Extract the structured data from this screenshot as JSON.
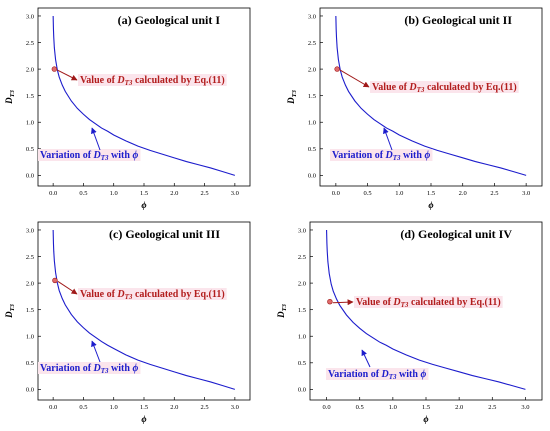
{
  "chart_data": [
    {
      "type": "line",
      "title": "(a) Geological unit I",
      "xlabel": "ϕ",
      "ylabel": "D_T3",
      "xlim": [
        -0.25,
        3.25
      ],
      "ylim": [
        -0.2,
        3.15
      ],
      "xticks": [
        "0.0",
        "0.5",
        "1.0",
        "1.5",
        "2.0",
        "2.5",
        "3.0"
      ],
      "yticks": [
        "0.0",
        "0.5",
        "1.0",
        "1.5",
        "2.0",
        "2.5",
        "3.0"
      ],
      "series": [
        {
          "x": [
            0.0,
            0.005,
            0.01,
            0.02,
            0.04,
            0.07,
            0.1,
            0.15,
            0.2,
            0.3,
            0.4,
            0.5,
            0.6,
            0.7,
            0.8,
            0.9,
            1.0,
            1.2,
            1.4,
            1.6,
            1.8,
            2.0,
            2.2,
            2.4,
            2.6,
            2.8,
            3.0
          ],
          "y": [
            3.0,
            2.75,
            2.6,
            2.4,
            2.18,
            1.98,
            1.85,
            1.7,
            1.58,
            1.4,
            1.26,
            1.15,
            1.05,
            0.97,
            0.89,
            0.83,
            0.76,
            0.65,
            0.55,
            0.47,
            0.4,
            0.33,
            0.26,
            0.2,
            0.14,
            0.07,
            0.0
          ]
        }
      ],
      "point": {
        "x": 0.02,
        "y": 2.0
      },
      "annotations": {
        "value": {
          "pre": "Value of ",
          "sym": "D",
          "sub": "T3",
          "post": " calculated by Eq.(11)"
        },
        "variation": {
          "pre": "Variation of ",
          "sym": "D",
          "sub": "T3",
          "mid": " with ",
          "phi": "ϕ"
        }
      }
    },
    {
      "type": "line",
      "title": "(b) Geological unit II",
      "xlabel": "ϕ",
      "ylabel": "D_T3",
      "xlim": [
        -0.25,
        3.25
      ],
      "ylim": [
        -0.2,
        3.15
      ],
      "xticks": [
        "0.0",
        "0.5",
        "1.0",
        "1.5",
        "2.0",
        "2.5",
        "3.0"
      ],
      "yticks": [
        "0.0",
        "0.5",
        "1.0",
        "1.5",
        "2.0",
        "2.5",
        "3.0"
      ],
      "series": [
        {
          "x": [
            0.0,
            0.005,
            0.01,
            0.02,
            0.04,
            0.07,
            0.1,
            0.15,
            0.2,
            0.3,
            0.4,
            0.5,
            0.6,
            0.7,
            0.8,
            0.9,
            1.0,
            1.2,
            1.4,
            1.6,
            1.8,
            2.0,
            2.2,
            2.4,
            2.6,
            2.8,
            3.0
          ],
          "y": [
            3.0,
            2.75,
            2.6,
            2.4,
            2.18,
            1.98,
            1.85,
            1.7,
            1.58,
            1.4,
            1.26,
            1.15,
            1.05,
            0.97,
            0.89,
            0.83,
            0.76,
            0.65,
            0.55,
            0.47,
            0.4,
            0.33,
            0.26,
            0.2,
            0.14,
            0.07,
            0.0
          ]
        }
      ],
      "point": {
        "x": 0.02,
        "y": 2.0
      },
      "annotations": {
        "value": {
          "pre": "Value of ",
          "sym": "D",
          "sub": "T3",
          "post": " calculated by Eq.(11)"
        },
        "variation": {
          "pre": "Variation of ",
          "sym": "D",
          "sub": "T3",
          "mid": " with ",
          "phi": "ϕ"
        }
      }
    },
    {
      "type": "line",
      "title": "(c) Geological unit III",
      "xlabel": "ϕ",
      "ylabel": "D_T3",
      "xlim": [
        -0.25,
        3.25
      ],
      "ylim": [
        -0.2,
        3.15
      ],
      "xticks": [
        "0.0",
        "0.5",
        "1.0",
        "1.5",
        "2.0",
        "2.5",
        "3.0"
      ],
      "yticks": [
        "0.0",
        "0.5",
        "1.0",
        "1.5",
        "2.0",
        "2.5",
        "3.0"
      ],
      "series": [
        {
          "x": [
            0.0,
            0.005,
            0.01,
            0.02,
            0.04,
            0.07,
            0.1,
            0.15,
            0.2,
            0.3,
            0.4,
            0.5,
            0.6,
            0.7,
            0.8,
            0.9,
            1.0,
            1.2,
            1.4,
            1.6,
            1.8,
            2.0,
            2.2,
            2.4,
            2.6,
            2.8,
            3.0
          ],
          "y": [
            3.0,
            2.75,
            2.6,
            2.42,
            2.2,
            2.0,
            1.86,
            1.71,
            1.59,
            1.41,
            1.27,
            1.16,
            1.06,
            0.98,
            0.9,
            0.83,
            0.77,
            0.65,
            0.55,
            0.47,
            0.4,
            0.33,
            0.26,
            0.2,
            0.14,
            0.07,
            0.0
          ]
        }
      ],
      "point": {
        "x": 0.03,
        "y": 2.05
      },
      "annotations": {
        "value": {
          "pre": "Value of ",
          "sym": "D",
          "sub": "T3",
          "post": " calculated by Eq.(11)"
        },
        "variation": {
          "pre": "Variation of ",
          "sym": "D",
          "sub": "T3",
          "mid": " with ",
          "phi": "ϕ"
        }
      }
    },
    {
      "type": "line",
      "title": "(d) Geological unit IV",
      "xlabel": "ϕ",
      "ylabel": "D_T3",
      "xlim": [
        -0.25,
        3.25
      ],
      "ylim": [
        -0.2,
        3.15
      ],
      "xticks": [
        "0.0",
        "0.5",
        "1.0",
        "1.5",
        "2.0",
        "2.5",
        "3.0"
      ],
      "yticks": [
        "0.0",
        "0.5",
        "1.0",
        "1.5",
        "2.0",
        "2.5",
        "3.0"
      ],
      "series": [
        {
          "x": [
            0.0,
            0.005,
            0.01,
            0.02,
            0.04,
            0.07,
            0.1,
            0.15,
            0.2,
            0.3,
            0.4,
            0.5,
            0.6,
            0.7,
            0.8,
            0.9,
            1.0,
            1.2,
            1.4,
            1.6,
            1.8,
            2.0,
            2.2,
            2.4,
            2.6,
            2.8,
            3.0
          ],
          "y": [
            3.0,
            2.75,
            2.6,
            2.4,
            2.18,
            1.98,
            1.85,
            1.7,
            1.58,
            1.4,
            1.26,
            1.15,
            1.05,
            0.97,
            0.89,
            0.83,
            0.76,
            0.65,
            0.55,
            0.47,
            0.4,
            0.33,
            0.26,
            0.2,
            0.14,
            0.07,
            0.0
          ]
        }
      ],
      "point": {
        "x": 0.05,
        "y": 1.65
      },
      "annotations": {
        "value": {
          "pre": "Value of ",
          "sym": "D",
          "sub": "T3",
          "post": " calculated by Eq.(11)"
        },
        "variation": {
          "pre": "Variation of ",
          "sym": "D",
          "sub": "T3",
          "mid": " with ",
          "phi": "ϕ"
        }
      }
    }
  ]
}
